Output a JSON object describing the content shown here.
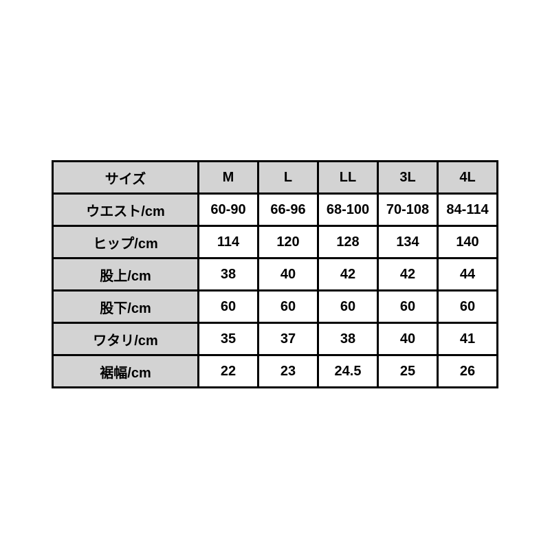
{
  "chart_data": {
    "type": "table",
    "title": "",
    "columns": [
      "サイズ",
      "M",
      "L",
      "LL",
      "3L",
      "4L"
    ],
    "rows": [
      {
        "label": "ウエスト/cm",
        "values": [
          "60-90",
          "66-96",
          "68-100",
          "70-108",
          "84-114"
        ]
      },
      {
        "label": "ヒップ/cm",
        "values": [
          "114",
          "120",
          "128",
          "134",
          "140"
        ]
      },
      {
        "label": "股上/cm",
        "values": [
          "38",
          "40",
          "42",
          "42",
          "44"
        ]
      },
      {
        "label": "股下/cm",
        "values": [
          "60",
          "60",
          "60",
          "60",
          "60"
        ]
      },
      {
        "label": "ワタリ/cm",
        "values": [
          "35",
          "37",
          "38",
          "40",
          "41"
        ]
      },
      {
        "label": "裾幅/cm",
        "values": [
          "22",
          "23",
          "24.5",
          "25",
          "26"
        ]
      }
    ],
    "layout": {
      "header_background": "#d3d3d3",
      "label_column_background": "#d3d3d3",
      "cell_background": "#ffffff",
      "border_color": "#000000",
      "text_color": "#000000",
      "page_background": "#ffffff"
    }
  }
}
